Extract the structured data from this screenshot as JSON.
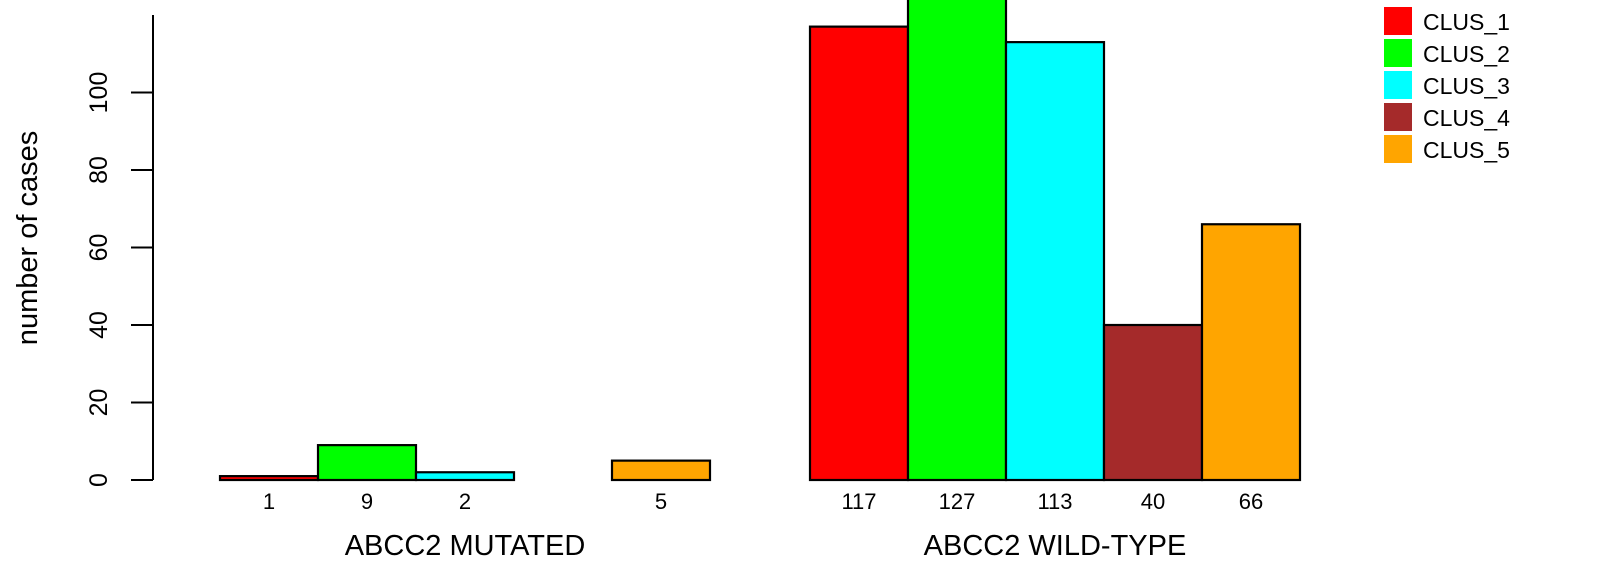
{
  "chart_data": {
    "type": "bar",
    "ylabel": "number of cases",
    "xlabel": "",
    "ylim": [
      0,
      120
    ],
    "yticks": [
      0,
      20,
      40,
      60,
      80,
      100
    ],
    "grid": false,
    "legend_position": "top-right",
    "groups": [
      "ABCC2 MUTATED",
      "ABCC2 WILD-TYPE"
    ],
    "series": [
      {
        "name": "CLUS_1",
        "color": "#ff0000",
        "values": [
          1,
          117
        ],
        "labels": [
          "1",
          "117"
        ]
      },
      {
        "name": "CLUS_2",
        "color": "#00ff00",
        "values": [
          9,
          127
        ],
        "labels": [
          "9",
          "127"
        ]
      },
      {
        "name": "CLUS_3",
        "color": "#00ffff",
        "values": [
          2,
          113
        ],
        "labels": [
          "2",
          "113"
        ]
      },
      {
        "name": "CLUS_4",
        "color": "#a52a2a",
        "values": [
          0,
          40
        ],
        "labels": [
          "",
          "40"
        ]
      },
      {
        "name": "CLUS_5",
        "color": "#ffa500",
        "values": [
          5,
          66
        ],
        "labels": [
          "5",
          "66"
        ]
      }
    ]
  }
}
